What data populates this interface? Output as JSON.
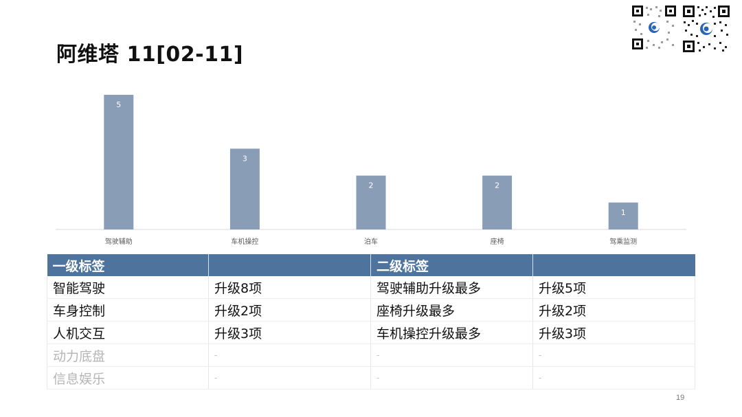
{
  "title": "阿维塔 11[02-11]",
  "page_number": "19",
  "colors": {
    "bar": "#8a9db6",
    "header_bg": "#4e739d",
    "header_text": "#ffffff",
    "dim_text": "#b5b5b5"
  },
  "chart_data": {
    "type": "bar",
    "categories": [
      "驾驶辅助",
      "车机操控",
      "泊车",
      "座椅",
      "驾乘监测"
    ],
    "values": [
      5,
      3,
      2,
      2,
      1
    ],
    "data_labels": [
      "5",
      "3",
      "2",
      "2",
      "1"
    ],
    "title": "",
    "xlabel": "",
    "ylabel": "",
    "ylim": [
      0,
      5
    ],
    "grid": false,
    "legend": "none"
  },
  "table": {
    "headers": [
      "一级标签",
      "",
      "二级标签",
      ""
    ],
    "rows": [
      [
        "智能驾驶",
        "升级8项",
        "驾驶辅助升级最多",
        "升级5项"
      ],
      [
        "车身控制",
        "升级2项",
        "座椅升级最多",
        "升级2项"
      ],
      [
        "人机交互",
        "升级3项",
        "车机操控升级最多",
        "升级3项"
      ],
      [
        "动力底盘",
        "-",
        "-",
        "-"
      ],
      [
        "信息娱乐",
        "-",
        "-",
        "-"
      ]
    ]
  },
  "qr_codes": [
    "qr-code-icon",
    "qr-code-icon"
  ]
}
